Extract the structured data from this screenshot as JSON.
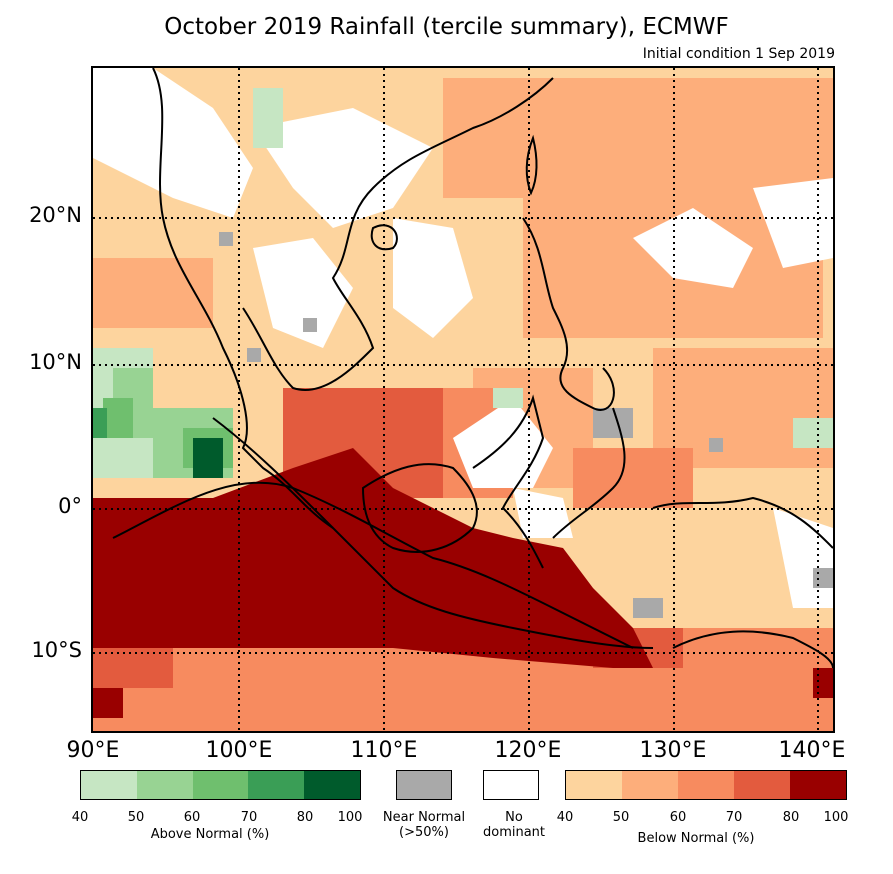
{
  "title": "October 2019 Rainfall (tercile summary), ECMWF",
  "subtitle": "Initial condition 1 Sep 2019",
  "lat_labels": [
    "20°N",
    "10°N",
    "0°",
    "10°S"
  ],
  "lon_labels": [
    "90°E",
    "100°E",
    "110°E",
    "120°E",
    "130°E",
    "140°E"
  ],
  "legend": {
    "above": {
      "caption": "Above Normal (%)",
      "ticks": [
        "40",
        "50",
        "60",
        "70",
        "80",
        "100"
      ],
      "colors": [
        "#c6e6c3",
        "#98d393",
        "#6fbf6e",
        "#3a9e56",
        "#005b2c"
      ]
    },
    "near": {
      "caption_line1": "Near Normal",
      "caption_line2": "(>50%)",
      "color": "#a9a9a9"
    },
    "none": {
      "caption_line1": "No",
      "caption_line2": "dominant",
      "color": "#ffffff"
    },
    "below": {
      "caption": "Below Normal (%)",
      "ticks": [
        "40",
        "50",
        "60",
        "70",
        "80",
        "100"
      ],
      "colors": [
        "#fdd49e",
        "#fdae7b",
        "#f78b5f",
        "#e35b3e",
        "#990000"
      ]
    }
  }
}
